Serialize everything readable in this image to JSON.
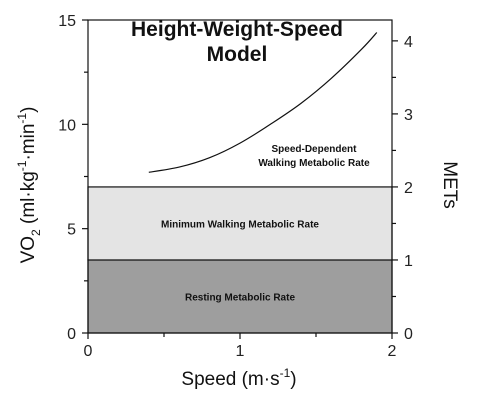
{
  "chart_data": {
    "type": "area",
    "title_lines": [
      "Height-Weight-Speed",
      "Model"
    ],
    "xlabel": {
      "base": "Speed (m",
      "dot": "·",
      "mid": "s",
      "sup": "-1",
      "end": ")"
    },
    "ylabel": {
      "base": "VO",
      "sub": "2",
      "open": " (ml",
      "dot1": "·",
      "kg": "kg",
      "sup1": "-1",
      "dot2": "·",
      "min": "min",
      "sup2": "-1",
      "close": ")"
    },
    "y2label": "METs",
    "xlim": [
      0,
      2
    ],
    "ylim": [
      0,
      15
    ],
    "y2lim": [
      0,
      4.2857
    ],
    "x_ticks": [
      0,
      1,
      2
    ],
    "x_tick_labels": [
      "0",
      "1",
      "2"
    ],
    "y_ticks": [
      0,
      5,
      10,
      15
    ],
    "y_tick_labels": [
      "0",
      "5",
      "10",
      "15"
    ],
    "y2_ticks": [
      0,
      1,
      2,
      3,
      4
    ],
    "y2_tick_labels": [
      "0",
      "1",
      "2",
      "3",
      "4"
    ],
    "bands": [
      {
        "label": "Resting Metabolic Rate",
        "y0": 0,
        "y1": 3.5,
        "color": "#9e9e9e"
      },
      {
        "label": "Minimum Walking Metabolic Rate",
        "y0": 3.5,
        "y1": 7.0,
        "color": "#e4e4e4"
      }
    ],
    "curve": {
      "label_lines": [
        "Speed-Dependent",
        "Walking Metabolic Rate"
      ],
      "x": [
        0.4,
        0.6,
        0.8,
        1.0,
        1.2,
        1.4,
        1.6,
        1.8,
        1.9
      ],
      "y": [
        7.7,
        7.95,
        8.4,
        9.1,
        10.0,
        11.0,
        12.2,
        13.6,
        14.4
      ]
    }
  }
}
